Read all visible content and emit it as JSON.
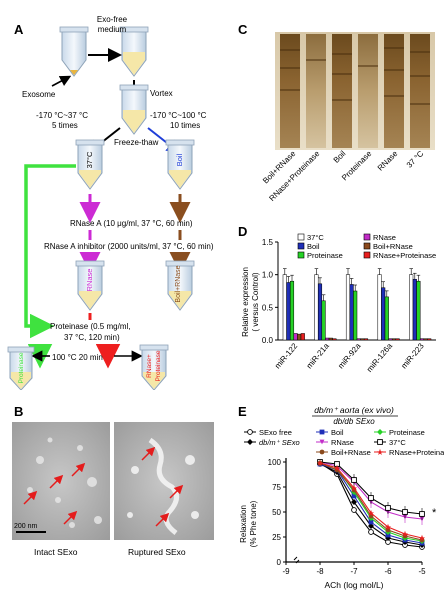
{
  "panels": {
    "A": {
      "letter": "A",
      "exo_free_medium": [
        "Exo-free",
        "medium"
      ],
      "exosome": "Exosome",
      "vortex": "Vortex",
      "left_cycle": [
        "-170 °C~37 °C",
        "5 times"
      ],
      "right_cycle": [
        "-170 °C~100 °C",
        "10 times"
      ],
      "freeze_thaw": "Freeze-thaw",
      "tube_37": "37°C",
      "tube_boil": "Boil",
      "rnase_a": "RNase A (10 μg/ml, 37 °C, 60 min)",
      "rnase_inhibitor": "RNase A  inhibitor (2000 units/ml, 37 °C, 60 min)",
      "tube_rnase": "RNase",
      "tube_boil_rnase": "Boil+RNase",
      "proteinase": [
        "Proteinase (0.5 mg/ml,",
        "37 °C, 120 min)"
      ],
      "boil_step": "100 °C  20 min",
      "tube_proteinase": "Proteinase",
      "tube_rnase_proteinase": [
        "RNase+",
        "Proteinase"
      ],
      "colors": {
        "green": "#3fe23f",
        "purple": "#cc2ad4",
        "brown": "#8a4e1f",
        "red": "#ee1f1f",
        "blue": "#1f3ed8"
      }
    },
    "B": {
      "letter": "B",
      "scale_bar": "200 nm",
      "left_label": "Intact SExo",
      "right_label": "Ruptured SExo"
    },
    "C": {
      "letter": "C",
      "lanes": [
        "Boil+RNase",
        "RNase+Proteinase",
        "Boil",
        "Proteinase",
        "RNase",
        "37 °C"
      ]
    },
    "D": {
      "letter": "D",
      "chart_data": {
        "type": "bar",
        "ylabel": [
          "Relative expression",
          "( versus Control)"
        ],
        "ylim": [
          0,
          1.5
        ],
        "yticks": [
          "0.0",
          "0.5",
          "1.0",
          "1.5"
        ],
        "categories": [
          "miR-122",
          "miR-21a",
          "miR-92a",
          "miR-126a",
          "miR-223"
        ],
        "series": [
          {
            "name": "37°C",
            "color": "#ffffff",
            "values": [
              1.0,
              1.0,
              1.0,
              1.0,
              1.0
            ]
          },
          {
            "name": "Boil",
            "color": "#1f2fb8",
            "values": [
              0.88,
              0.86,
              0.85,
              0.8,
              0.93
            ]
          },
          {
            "name": "Proteinase",
            "color": "#26d226",
            "values": [
              0.9,
              0.6,
              0.75,
              0.66,
              0.9
            ]
          },
          {
            "name": "RNase",
            "color": "#c22cc8",
            "values": [
              0.1,
              0.03,
              0.02,
              0.02,
              0.02
            ]
          },
          {
            "name": "Boil+RNase",
            "color": "#8b4a1d",
            "values": [
              0.09,
              0.03,
              0.02,
              0.02,
              0.02
            ]
          },
          {
            "name": "RNase+Proteinase",
            "color": "#e81f1f",
            "values": [
              0.1,
              0.02,
              0.02,
              0.02,
              0.02
            ]
          }
        ]
      }
    },
    "E": {
      "letter": "E",
      "title": "db/m⁺ aorta (ex vivo)",
      "subtitle": "db/db SExo",
      "star": "*",
      "chart_data": {
        "type": "line",
        "xlabel": "ACh (log mol/L)",
        "ylabel": [
          "Relaxation",
          "(% Phe tone)"
        ],
        "xlim": [
          -9,
          -5
        ],
        "ylim": [
          0,
          100
        ],
        "xticks": [
          "-9",
          "-8",
          "-7",
          "-6",
          "-5"
        ],
        "yticks": [
          "0",
          "25",
          "50",
          "75",
          "100"
        ],
        "x": [
          -8,
          -7.5,
          -7,
          -6.5,
          -6,
          -5.5,
          -5
        ],
        "series": [
          {
            "name": "SExo free",
            "color": "#000000",
            "marker": "circle-open",
            "values": [
              99,
              88,
              52,
              30,
              20,
              17,
              15
            ]
          },
          {
            "name": "db/m⁺ SExo",
            "color": "#000000",
            "marker": "diamond",
            "values": [
              98,
              90,
              60,
              36,
              24,
              20,
              17
            ]
          },
          {
            "name": "Boil",
            "color": "#1f2fb8",
            "marker": "square",
            "values": [
              98,
              92,
              66,
              40,
              27,
              22,
              19
            ]
          },
          {
            "name": "Proteinase",
            "color": "#26d226",
            "marker": "diamond",
            "values": [
              99,
              94,
              70,
              44,
              30,
              24,
              21
            ]
          },
          {
            "name": "RNase",
            "color": "#c22cc8",
            "marker": "triangle-down",
            "values": [
              100,
              96,
              80,
              60,
              50,
              45,
              43
            ]
          },
          {
            "name": "37°C",
            "color": "#000000",
            "marker": "square-open",
            "values": [
              100,
              98,
              82,
              64,
              54,
              50,
              48
            ]
          },
          {
            "name": "Boil+RNase",
            "color": "#8b4a1d",
            "marker": "circle",
            "values": [
              99,
              92,
              72,
              46,
              32,
              26,
              22
            ]
          },
          {
            "name": "RNase+Proteinase",
            "color": "#e81f1f",
            "marker": "star",
            "values": [
              99,
              94,
              74,
              49,
              35,
              28,
              24
            ]
          }
        ]
      }
    }
  }
}
